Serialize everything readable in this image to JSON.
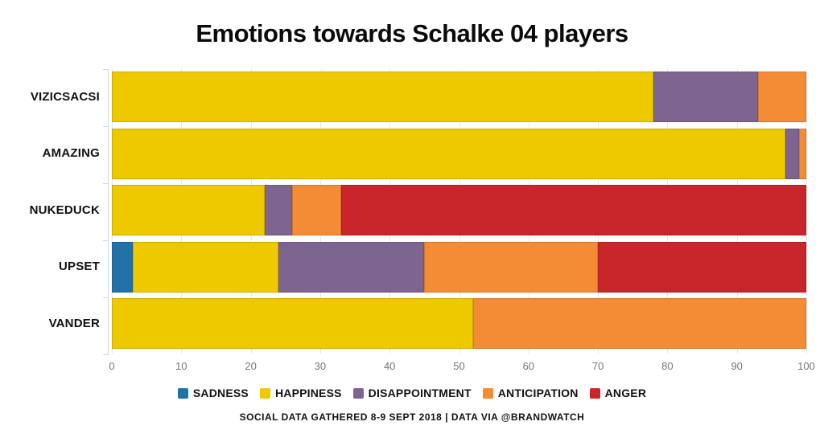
{
  "footer": "SOCIAL DATA GATHERED 8-9 SEPT 2018 | DATA VIA @BRANDWATCH",
  "chart_data": {
    "type": "bar",
    "orientation": "horizontal",
    "stacked": true,
    "title": "Emotions towards Schalke 04 players",
    "categories": [
      "VIZICSACSI",
      "AMAZING",
      "NUKEDUCK",
      "UPSET",
      "VANDER"
    ],
    "series": [
      {
        "name": "SADNESS",
        "color": "#2272A8",
        "values": [
          0,
          0,
          0,
          3,
          0
        ]
      },
      {
        "name": "HAPPINESS",
        "color": "#EEC900",
        "values": [
          78,
          97,
          22,
          21,
          52
        ]
      },
      {
        "name": "DISAPPOINTMENT",
        "color": "#7E6590",
        "values": [
          15,
          2,
          4,
          21,
          0
        ]
      },
      {
        "name": "ANTICIPATION",
        "color": "#F48B35",
        "values": [
          7,
          1,
          7,
          25,
          48
        ]
      },
      {
        "name": "ANGER",
        "color": "#C8262B",
        "values": [
          0,
          0,
          67,
          30,
          0
        ]
      }
    ],
    "x_ticks": [
      0,
      10,
      20,
      30,
      40,
      50,
      60,
      70,
      80,
      90,
      100
    ],
    "xlim": [
      0,
      100
    ],
    "grid": true,
    "legend_position": "bottom",
    "colors": {
      "grid": "#e7e7e7",
      "axis": "#ccd5ea",
      "tick_text": "#757575",
      "text": "#111111"
    }
  }
}
